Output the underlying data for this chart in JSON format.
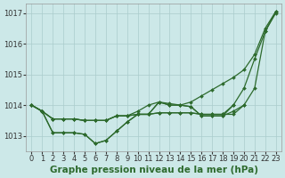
{
  "background_color": "#cce8e8",
  "grid_color": "#aacccc",
  "line_color": "#2d6a2d",
  "title": "Graphe pression niveau de la mer (hPa)",
  "title_fontsize": 7.5,
  "tick_fontsize": 6.0,
  "xlim": [
    -0.5,
    23.5
  ],
  "ylim": [
    1012.5,
    1017.3
  ],
  "yticks": [
    1013,
    1014,
    1015,
    1016,
    1017
  ],
  "xticks": [
    0,
    1,
    2,
    3,
    4,
    5,
    6,
    7,
    8,
    9,
    10,
    11,
    12,
    13,
    14,
    15,
    16,
    17,
    18,
    19,
    20,
    21,
    22,
    23
  ],
  "lines": [
    {
      "x": [
        0,
        1,
        2,
        3,
        4,
        5,
        6,
        7,
        8,
        9,
        10,
        11,
        12,
        13,
        14,
        15,
        16,
        17,
        18,
        19,
        20
      ],
      "y": [
        1014.0,
        1013.8,
        1013.55,
        1013.55,
        1013.55,
        1013.5,
        1013.5,
        1013.5,
        1013.65,
        1013.65,
        1013.7,
        1013.7,
        1013.75,
        1013.75,
        1013.75,
        1013.75,
        1013.7,
        1013.7,
        1013.7,
        1013.7,
        1014.0
      ]
    },
    {
      "x": [
        0,
        1,
        2,
        3,
        4,
        5,
        6,
        7,
        8,
        9,
        10,
        11,
        12,
        13,
        14,
        15,
        16,
        17,
        18,
        19,
        20,
        21,
        22,
        23
      ],
      "y": [
        1014.0,
        1013.8,
        1013.1,
        1013.1,
        1013.1,
        1013.05,
        1012.75,
        1012.85,
        1013.15,
        1013.45,
        1013.7,
        1013.7,
        1014.1,
        1014.0,
        1014.0,
        1013.95,
        1013.65,
        1013.65,
        1013.65,
        1013.8,
        1014.0,
        1014.55,
        1016.4,
        1017.0
      ]
    },
    {
      "x": [
        0,
        1,
        2,
        3,
        4,
        5,
        6,
        7,
        8,
        9,
        10,
        11,
        12,
        13,
        14,
        15,
        16,
        17,
        18,
        19,
        20,
        21,
        22,
        23
      ],
      "y": [
        1014.0,
        1013.8,
        1013.55,
        1013.55,
        1013.55,
        1013.5,
        1013.5,
        1013.5,
        1013.65,
        1013.65,
        1013.8,
        1014.0,
        1014.1,
        1014.05,
        1014.0,
        1014.1,
        1014.3,
        1014.5,
        1014.7,
        1014.9,
        1015.15,
        1015.65,
        1016.5,
        1017.05
      ]
    },
    {
      "x": [
        0,
        1,
        2,
        3,
        4,
        5,
        6,
        7,
        8,
        9,
        10,
        11,
        12,
        13,
        14,
        15,
        16,
        17,
        18,
        19,
        20,
        21,
        22,
        23
      ],
      "y": [
        1014.0,
        1013.8,
        1013.1,
        1013.1,
        1013.1,
        1013.05,
        1012.75,
        1012.85,
        1013.15,
        1013.45,
        1013.7,
        1013.7,
        1014.1,
        1014.0,
        1014.0,
        1013.95,
        1013.65,
        1013.65,
        1013.65,
        1014.0,
        1014.55,
        1015.5,
        1016.4,
        1017.05
      ]
    },
    {
      "x": [
        0,
        1,
        2,
        3,
        4,
        5,
        6,
        7,
        8,
        9,
        10,
        11,
        12,
        13,
        14,
        15,
        16,
        17,
        18,
        19
      ],
      "y": [
        1014.0,
        1013.8,
        1013.55,
        1013.55,
        1013.55,
        1013.5,
        1013.5,
        1013.5,
        1013.65,
        1013.65,
        1013.7,
        1013.7,
        1013.75,
        1013.75,
        1013.75,
        1013.75,
        1013.7,
        1013.7,
        1013.7,
        1014.0
      ]
    }
  ]
}
